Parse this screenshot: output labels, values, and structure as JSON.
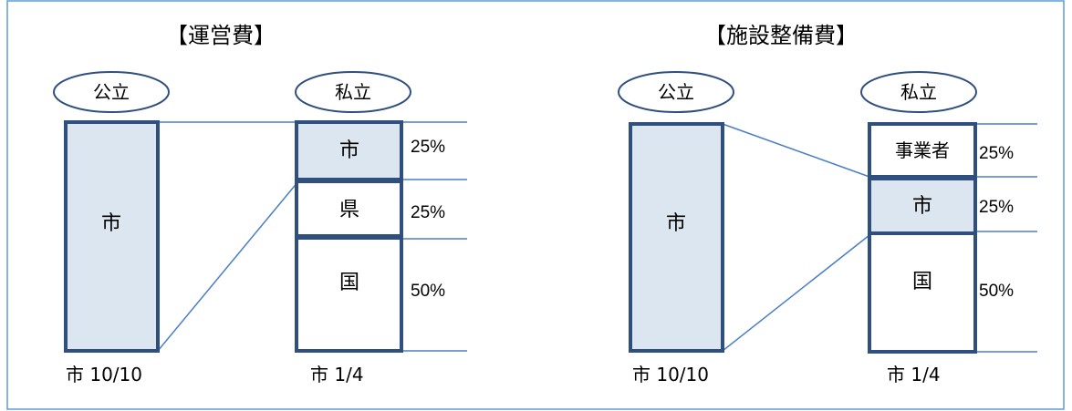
{
  "left": {
    "title": "【運営費】",
    "public_label": "公立",
    "private_label": "私立",
    "public_segment": "市",
    "private_segments": [
      {
        "label": "市",
        "pct": "25%"
      },
      {
        "label": "県",
        "pct": "25%"
      },
      {
        "label": "国",
        "pct": "50%"
      }
    ],
    "public_caption": "市 10/10",
    "private_caption": "市 1/4"
  },
  "right": {
    "title": "【施設整備費】",
    "public_label": "公立",
    "private_label": "私立",
    "public_segment": "市",
    "private_segments": [
      {
        "label": "事業者",
        "pct": "25%"
      },
      {
        "label": "市",
        "pct": "25%"
      },
      {
        "label": "国",
        "pct": "50%"
      }
    ],
    "public_caption": "市 10/10",
    "private_caption": "市 1/4"
  },
  "colors": {
    "frame": "#5b9bd5",
    "box_border": "#2f4f7f",
    "shaded_fill": "#dce6f1",
    "connector": "#4a7ec7"
  }
}
